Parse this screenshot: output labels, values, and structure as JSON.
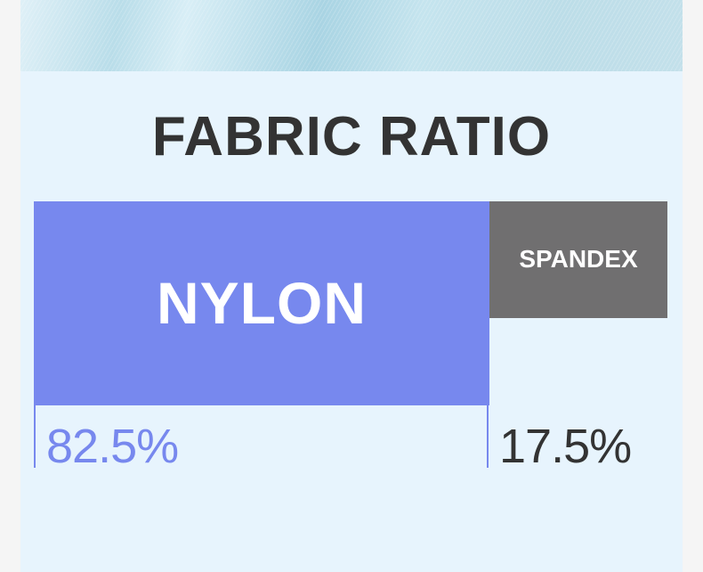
{
  "title": "FABRIC RATIO",
  "materials": [
    {
      "name": "NYLON",
      "percent_label": "82.5%",
      "percent": 82.5,
      "color": "#7788ee",
      "label_color": "#7788ee"
    },
    {
      "name": "SPANDEX",
      "percent_label": "17.5%",
      "percent": 17.5,
      "color": "#706f70",
      "label_color": "#333333"
    }
  ]
}
